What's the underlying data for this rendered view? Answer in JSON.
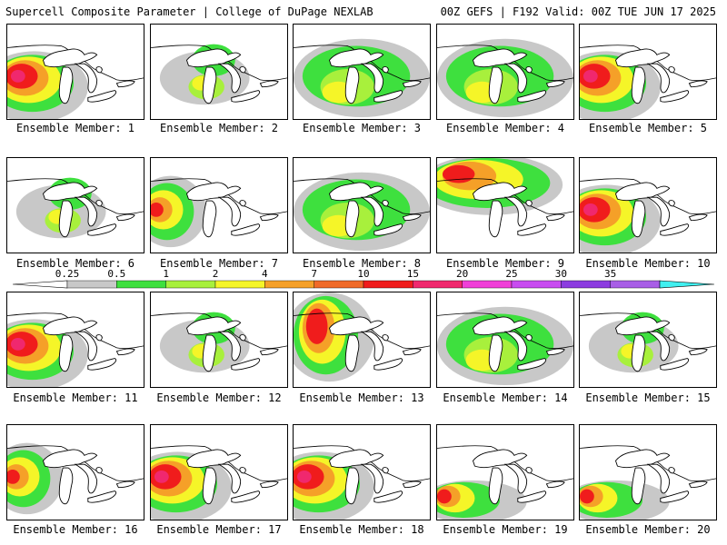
{
  "header": {
    "left": "Supercell Composite Parameter | College of DuPage NEXLAB",
    "right": "00Z GEFS | F192 Valid: 00Z TUE JUN 17 2025"
  },
  "legend": {
    "ticks": [
      "0.25",
      "0.5",
      "1",
      "2",
      "4",
      "7",
      "10",
      "15",
      "20",
      "25",
      "30",
      "35"
    ],
    "colors": [
      "#c8c8c8",
      "#3ee03e",
      "#a8f03c",
      "#f5f528",
      "#f5a028",
      "#f06a28",
      "#f01c1c",
      "#f0286e",
      "#f040d8",
      "#c84cf0",
      "#8c3ce0",
      "#a85ee6",
      "#40f0f0"
    ]
  },
  "members": [
    {
      "label": "Ensemble Member: 1",
      "coverage": "west-heavy"
    },
    {
      "label": "Ensemble Member: 2",
      "coverage": "light"
    },
    {
      "label": "Ensemble Member: 3",
      "coverage": "moderate"
    },
    {
      "label": "Ensemble Member: 4",
      "coverage": "moderate"
    },
    {
      "label": "Ensemble Member: 5",
      "coverage": "west-heavy"
    },
    {
      "label": "Ensemble Member: 6",
      "coverage": "light"
    },
    {
      "label": "Ensemble Member: 7",
      "coverage": "west"
    },
    {
      "label": "Ensemble Member: 8",
      "coverage": "moderate"
    },
    {
      "label": "Ensemble Member: 9",
      "coverage": "north-heavy"
    },
    {
      "label": "Ensemble Member: 10",
      "coverage": "west-heavy"
    },
    {
      "label": "Ensemble Member: 11",
      "coverage": "west-heavy"
    },
    {
      "label": "Ensemble Member: 12",
      "coverage": "light"
    },
    {
      "label": "Ensemble Member: 13",
      "coverage": "central-heavy"
    },
    {
      "label": "Ensemble Member: 14",
      "coverage": "moderate"
    },
    {
      "label": "Ensemble Member: 15",
      "coverage": "light"
    },
    {
      "label": "Ensemble Member: 16",
      "coverage": "west"
    },
    {
      "label": "Ensemble Member: 17",
      "coverage": "west-heavy"
    },
    {
      "label": "Ensemble Member: 18",
      "coverage": "west-heavy"
    },
    {
      "label": "Ensemble Member: 19",
      "coverage": "southwest"
    },
    {
      "label": "Ensemble Member: 20",
      "coverage": "southwest"
    }
  ]
}
